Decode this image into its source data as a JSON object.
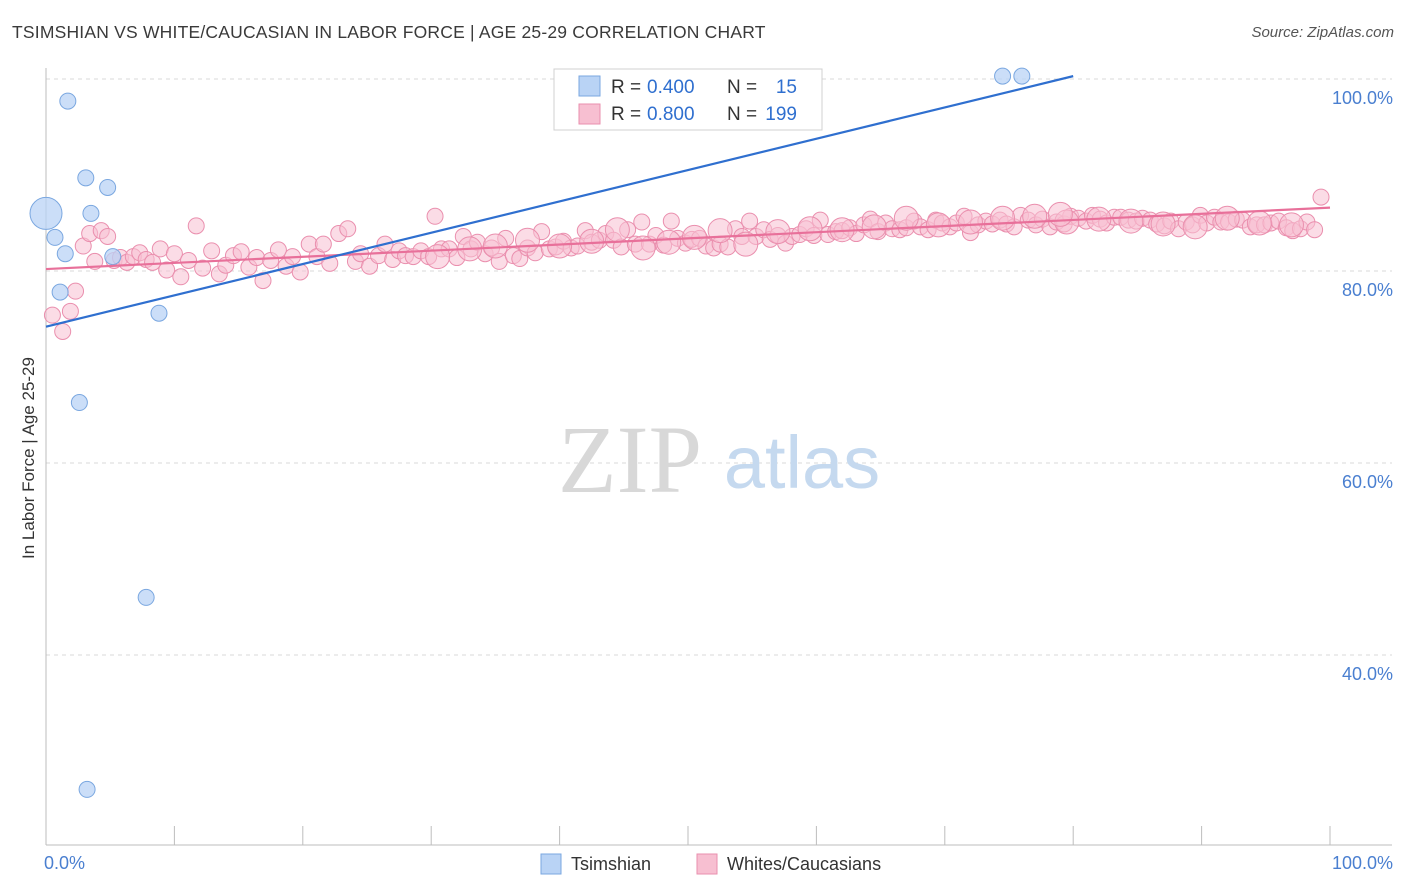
{
  "header": {
    "title": "TSIMSHIAN VS WHITE/CAUCASIAN IN LABOR FORCE | AGE 25-29 CORRELATION CHART",
    "source": "Source: ZipAtlas.com"
  },
  "watermark": {
    "zip": "ZIP",
    "atlas": "atlas"
  },
  "colors": {
    "blue_fill": "#b9d3f5",
    "blue_stroke": "#7aa7e0",
    "blue_line": "#2f6fcf",
    "pink_fill": "#f7bfd1",
    "pink_stroke": "#ea8fae",
    "pink_line": "#e8709a",
    "tick_text": "#4a7fd0",
    "grid": "#d9d9d9"
  },
  "legend": {
    "rows": [
      {
        "r_label": "R =",
        "r_value": "0.400",
        "n_label": "N =",
        "n_value": "15"
      },
      {
        "r_label": "R =",
        "r_value": "0.800",
        "n_label": "N =",
        "n_value": "199"
      }
    ]
  },
  "bottom_legend": {
    "items": [
      "Tsimshian",
      "Whites/Caucasians"
    ]
  },
  "chart_data": {
    "type": "scatter",
    "title": "TSIMSHIAN VS WHITE/CAUCASIAN IN LABOR FORCE | AGE 25-29 CORRELATION CHART",
    "xlabel": "",
    "ylabel": "In Labor Force | Age 25-29",
    "xlim": [
      0,
      100
    ],
    "ylim": [
      20,
      102
    ],
    "x_tick_labels": [
      "0.0%",
      "100.0%"
    ],
    "y_ticks": [
      40,
      60,
      80,
      100
    ],
    "y_tick_labels": [
      "40.0%",
      "60.0%",
      "80.0%",
      "100.0%"
    ],
    "series": [
      {
        "name": "Tsimshian",
        "R": 0.4,
        "N": 15,
        "trend": {
          "x": [
            0,
            80
          ],
          "y": [
            74.2,
            100.3
          ]
        },
        "points": [
          [
            0.0,
            86.0,
            16
          ],
          [
            1.7,
            97.7,
            8
          ],
          [
            3.1,
            89.7,
            8
          ],
          [
            4.8,
            88.7,
            8
          ],
          [
            3.5,
            86.0,
            8
          ],
          [
            0.7,
            83.5,
            8
          ],
          [
            1.5,
            81.8,
            8
          ],
          [
            5.2,
            81.5,
            8
          ],
          [
            1.1,
            77.8,
            8
          ],
          [
            8.8,
            75.6,
            8
          ],
          [
            2.6,
            66.3,
            8
          ],
          [
            7.8,
            46.0,
            8
          ],
          [
            3.2,
            26.0,
            8
          ],
          [
            74.5,
            100.3,
            8
          ],
          [
            76.0,
            100.3,
            8
          ]
        ]
      },
      {
        "name": "Whites/Caucasians",
        "R": 0.8,
        "N": 199,
        "trend": {
          "x": [
            0,
            100
          ],
          "y": [
            80.2,
            86.6
          ]
        },
        "points": [
          [
            0.5,
            75.4,
            8
          ],
          [
            1.3,
            73.7,
            8
          ],
          [
            1.9,
            75.8,
            8
          ],
          [
            2.3,
            77.9,
            8
          ],
          [
            2.9,
            82.6,
            8
          ],
          [
            3.4,
            83.9,
            8
          ],
          [
            3.8,
            81.0,
            8
          ],
          [
            4.3,
            84.2,
            8
          ],
          [
            4.8,
            83.6,
            8
          ],
          [
            5.3,
            81.1,
            8
          ],
          [
            5.8,
            81.4,
            8
          ],
          [
            6.3,
            80.9,
            8
          ],
          [
            6.8,
            81.5,
            8
          ],
          [
            7.3,
            81.9,
            8
          ],
          [
            7.8,
            81.2,
            8
          ],
          [
            8.3,
            80.9,
            8
          ],
          [
            8.9,
            82.3,
            8
          ],
          [
            9.4,
            80.1,
            8
          ],
          [
            10.0,
            81.8,
            8
          ],
          [
            10.5,
            79.4,
            8
          ],
          [
            11.1,
            81.1,
            8
          ],
          [
            11.7,
            84.7,
            8
          ],
          [
            12.2,
            80.3,
            8
          ],
          [
            12.9,
            82.1,
            8
          ],
          [
            13.5,
            79.7,
            8
          ],
          [
            14.0,
            80.6,
            8
          ],
          [
            14.6,
            81.6,
            8
          ],
          [
            15.2,
            82.0,
            8
          ],
          [
            15.8,
            80.4,
            8
          ],
          [
            16.4,
            81.4,
            8
          ],
          [
            16.9,
            79.0,
            8
          ],
          [
            17.5,
            81.1,
            8
          ],
          [
            18.1,
            82.2,
            8
          ],
          [
            18.7,
            80.5,
            8
          ],
          [
            19.2,
            81.5,
            8
          ],
          [
            19.8,
            79.9,
            8
          ],
          [
            20.5,
            82.8,
            8
          ],
          [
            21.1,
            81.5,
            8
          ],
          [
            21.6,
            82.8,
            8
          ],
          [
            22.1,
            80.8,
            8
          ],
          [
            22.8,
            83.9,
            8
          ],
          [
            23.5,
            84.4,
            8
          ],
          [
            24.1,
            81.0,
            8
          ],
          [
            24.5,
            81.8,
            8
          ],
          [
            25.2,
            80.5,
            8
          ],
          [
            25.9,
            81.6,
            8
          ],
          [
            26.4,
            82.8,
            8
          ],
          [
            27.0,
            81.2,
            8
          ],
          [
            27.5,
            82.1,
            8
          ],
          [
            28.0,
            81.6,
            8
          ],
          [
            28.6,
            81.5,
            8
          ],
          [
            29.2,
            82.1,
            8
          ],
          [
            29.8,
            81.5,
            8
          ],
          [
            30.3,
            85.7,
            8
          ],
          [
            30.8,
            82.3,
            8
          ],
          [
            31.4,
            82.3,
            8
          ],
          [
            32.0,
            81.4,
            8
          ],
          [
            32.5,
            83.6,
            8
          ],
          [
            33.1,
            82.3,
            8
          ],
          [
            33.6,
            83.0,
            8
          ],
          [
            34.2,
            81.8,
            8
          ],
          [
            34.7,
            82.4,
            8
          ],
          [
            35.3,
            81.0,
            8
          ],
          [
            35.8,
            83.4,
            8
          ],
          [
            36.4,
            81.6,
            8
          ],
          [
            36.9,
            81.3,
            8
          ],
          [
            37.5,
            82.4,
            8
          ],
          [
            38.1,
            81.9,
            8
          ],
          [
            38.6,
            84.1,
            8
          ],
          [
            39.2,
            82.3,
            8
          ],
          [
            39.7,
            82.5,
            8
          ],
          [
            40.3,
            83.1,
            8
          ],
          [
            40.9,
            82.4,
            8
          ],
          [
            41.4,
            82.6,
            8
          ],
          [
            42.0,
            84.2,
            8
          ],
          [
            42.5,
            83.0,
            8
          ],
          [
            43.1,
            83.2,
            8
          ],
          [
            43.6,
            83.9,
            8
          ],
          [
            44.2,
            83.2,
            8
          ],
          [
            44.8,
            82.5,
            8
          ],
          [
            45.3,
            84.3,
            8
          ],
          [
            45.9,
            82.8,
            8
          ],
          [
            46.4,
            85.1,
            8
          ],
          [
            47.0,
            82.8,
            8
          ],
          [
            47.5,
            83.7,
            8
          ],
          [
            48.1,
            82.7,
            8
          ],
          [
            48.7,
            85.2,
            8
          ],
          [
            49.2,
            83.4,
            8
          ],
          [
            49.8,
            82.9,
            8
          ],
          [
            50.3,
            83.3,
            8
          ],
          [
            50.9,
            83.4,
            8
          ],
          [
            51.4,
            82.6,
            8
          ],
          [
            52.0,
            82.4,
            8
          ],
          [
            52.5,
            82.8,
            8
          ],
          [
            53.1,
            82.5,
            8
          ],
          [
            53.7,
            84.4,
            8
          ],
          [
            54.2,
            83.6,
            8
          ],
          [
            54.8,
            85.2,
            8
          ],
          [
            55.3,
            83.6,
            8
          ],
          [
            55.9,
            84.3,
            8
          ],
          [
            56.4,
            83.3,
            8
          ],
          [
            57.0,
            83.7,
            8
          ],
          [
            57.6,
            82.9,
            8
          ],
          [
            58.1,
            83.6,
            8
          ],
          [
            58.7,
            83.8,
            8
          ],
          [
            59.2,
            84.4,
            8
          ],
          [
            59.8,
            83.7,
            8
          ],
          [
            60.3,
            85.3,
            8
          ],
          [
            60.9,
            83.8,
            8
          ],
          [
            61.5,
            84.1,
            8
          ],
          [
            62.0,
            84.2,
            8
          ],
          [
            62.6,
            84.5,
            8
          ],
          [
            63.1,
            83.9,
            8
          ],
          [
            63.7,
            84.8,
            8
          ],
          [
            64.2,
            85.4,
            8
          ],
          [
            64.8,
            84.1,
            8
          ],
          [
            65.4,
            85.0,
            8
          ],
          [
            65.9,
            84.4,
            8
          ],
          [
            66.5,
            84.3,
            8
          ],
          [
            67.0,
            84.5,
            8
          ],
          [
            67.6,
            85.2,
            8
          ],
          [
            68.1,
            84.6,
            8
          ],
          [
            68.7,
            84.3,
            8
          ],
          [
            69.3,
            85.3,
            8
          ],
          [
            69.8,
            85.0,
            8
          ],
          [
            70.4,
            84.6,
            8
          ],
          [
            70.9,
            85.0,
            8
          ],
          [
            71.5,
            85.7,
            8
          ],
          [
            72.0,
            84.0,
            8
          ],
          [
            72.6,
            84.8,
            8
          ],
          [
            73.2,
            85.2,
            8
          ],
          [
            73.7,
            84.9,
            8
          ],
          [
            74.3,
            85.3,
            8
          ],
          [
            74.8,
            84.9,
            8
          ],
          [
            75.4,
            84.6,
            8
          ],
          [
            75.9,
            85.8,
            8
          ],
          [
            76.5,
            85.3,
            8
          ],
          [
            77.1,
            84.8,
            8
          ],
          [
            77.6,
            85.4,
            8
          ],
          [
            78.2,
            84.6,
            8
          ],
          [
            78.7,
            85.1,
            8
          ],
          [
            79.3,
            84.9,
            8
          ],
          [
            79.8,
            85.7,
            8
          ],
          [
            80.4,
            85.5,
            8
          ],
          [
            81.0,
            85.2,
            8
          ],
          [
            81.5,
            85.8,
            8
          ],
          [
            82.1,
            85.4,
            8
          ],
          [
            82.6,
            85.0,
            8
          ],
          [
            83.2,
            85.6,
            8
          ],
          [
            83.7,
            85.6,
            8
          ],
          [
            84.3,
            85.3,
            8
          ],
          [
            84.9,
            85.2,
            8
          ],
          [
            85.4,
            85.5,
            8
          ],
          [
            86.0,
            85.3,
            8
          ],
          [
            86.5,
            84.9,
            8
          ],
          [
            87.1,
            84.7,
            8
          ],
          [
            87.6,
            85.2,
            8
          ],
          [
            88.2,
            84.4,
            8
          ],
          [
            88.8,
            85.1,
            8
          ],
          [
            89.3,
            84.8,
            8
          ],
          [
            89.9,
            85.8,
            8
          ],
          [
            90.4,
            85.0,
            8
          ],
          [
            91.0,
            85.6,
            8
          ],
          [
            91.5,
            85.1,
            8
          ],
          [
            92.1,
            85.1,
            8
          ],
          [
            92.7,
            85.4,
            8
          ],
          [
            93.2,
            85.3,
            8
          ],
          [
            93.8,
            84.6,
            8
          ],
          [
            94.3,
            84.8,
            8
          ],
          [
            94.9,
            84.8,
            8
          ],
          [
            95.4,
            85.0,
            8
          ],
          [
            96.0,
            85.2,
            8
          ],
          [
            96.6,
            84.5,
            8
          ],
          [
            97.1,
            84.2,
            8
          ],
          [
            97.7,
            84.4,
            8
          ],
          [
            98.2,
            85.1,
            8
          ],
          [
            98.8,
            84.3,
            8
          ],
          [
            99.3,
            87.7,
            8
          ],
          [
            30.5,
            81.5,
            12
          ],
          [
            33.0,
            82.3,
            12
          ],
          [
            35.0,
            82.6,
            12
          ],
          [
            37.5,
            83.2,
            12
          ],
          [
            40.0,
            82.6,
            12
          ],
          [
            42.5,
            83.1,
            12
          ],
          [
            44.5,
            84.3,
            12
          ],
          [
            46.5,
            82.4,
            12
          ],
          [
            48.5,
            83.0,
            12
          ],
          [
            50.5,
            83.5,
            12
          ],
          [
            52.5,
            84.2,
            12
          ],
          [
            54.5,
            82.8,
            12
          ],
          [
            57.0,
            84.1,
            12
          ],
          [
            59.5,
            84.4,
            12
          ],
          [
            62.0,
            84.3,
            12
          ],
          [
            64.5,
            84.6,
            12
          ],
          [
            67.0,
            85.5,
            12
          ],
          [
            69.5,
            84.8,
            12
          ],
          [
            72.0,
            85.1,
            12
          ],
          [
            74.5,
            85.5,
            12
          ],
          [
            77.0,
            85.7,
            12
          ],
          [
            79.5,
            85.1,
            12
          ],
          [
            82.0,
            85.4,
            12
          ],
          [
            84.5,
            85.2,
            12
          ],
          [
            87.0,
            84.9,
            12
          ],
          [
            89.5,
            84.6,
            12
          ],
          [
            92.0,
            85.5,
            12
          ],
          [
            94.5,
            85.0,
            12
          ],
          [
            97.0,
            84.8,
            12
          ],
          [
            79.0,
            85.9,
            12
          ]
        ]
      }
    ]
  }
}
